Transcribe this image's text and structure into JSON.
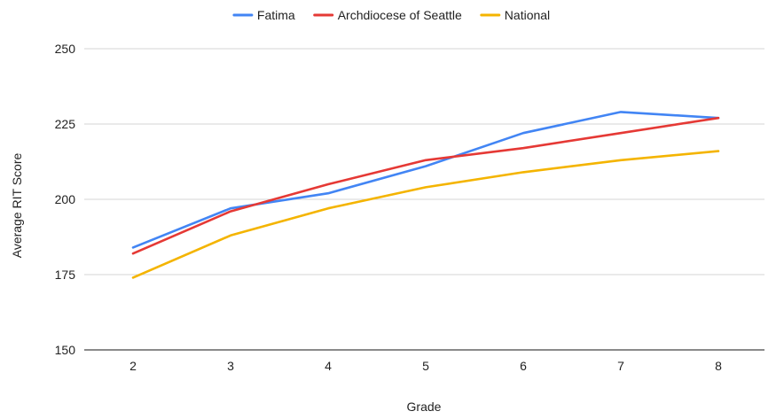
{
  "chart_data": {
    "type": "line",
    "title": "",
    "xlabel": "Grade",
    "ylabel": "Average  RIT Score",
    "categories": [
      "2",
      "3",
      "4",
      "5",
      "6",
      "7",
      "8"
    ],
    "ylim": [
      150,
      250
    ],
    "yticks": [
      "150",
      "175",
      "200",
      "225",
      "250"
    ],
    "grid": true,
    "legend_position": "top",
    "series": [
      {
        "name": "Fatima",
        "color": "#4285f4",
        "values": [
          184,
          197,
          202,
          211,
          222,
          229,
          227
        ]
      },
      {
        "name": "Archdiocese of Seattle",
        "color": "#e53935",
        "values": [
          182,
          196,
          205,
          213,
          217,
          222,
          227
        ]
      },
      {
        "name": "National",
        "color": "#f4b400",
        "values": [
          174,
          188,
          197,
          204,
          209,
          213,
          216
        ]
      }
    ]
  }
}
